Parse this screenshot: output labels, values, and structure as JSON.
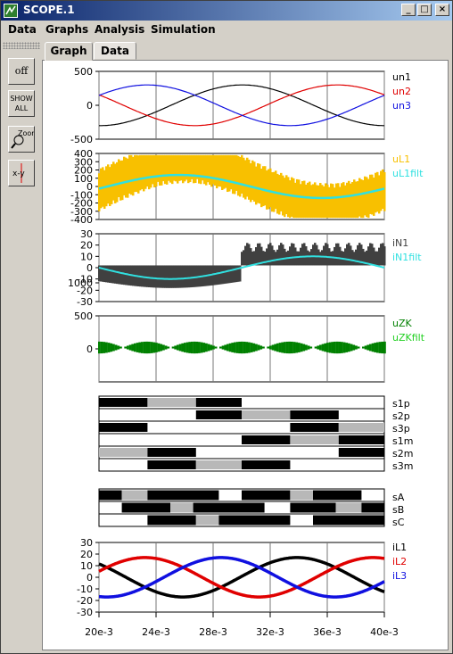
{
  "window": {
    "title": "SCOPE.1"
  },
  "menu": [
    "Data",
    "Graphs",
    "Analysis",
    "Simulation"
  ],
  "tabs": [
    {
      "label": "Graph",
      "active": true
    },
    {
      "label": "Data",
      "active": false
    }
  ],
  "tools": [
    {
      "name": "off-button",
      "label": "off"
    },
    {
      "name": "show-all-button",
      "label": "SHOW ALL"
    },
    {
      "name": "zoom-button",
      "label": "Zoom"
    },
    {
      "name": "xy-button",
      "label": "x-y"
    }
  ],
  "colors": {
    "black": "#000000",
    "red": "#e00000",
    "blue": "#1010e0",
    "orange": "#f8c000",
    "cyan": "#30e0e0",
    "dark": "#404040",
    "green": "#008000",
    "lightgreen": "#20d020",
    "gray": "#b8b8b8"
  },
  "x_axis": {
    "ticks": [
      "20e-3",
      "24e-3",
      "28e-3",
      "32e-3",
      "36e-3",
      "40e-3"
    ]
  },
  "graphs": [
    {
      "yticks": [
        "500",
        "0",
        "-500"
      ],
      "legend": [
        {
          "text": "un1",
          "color": "black"
        },
        {
          "text": "un2",
          "color": "red"
        },
        {
          "text": "un3",
          "color": "blue"
        }
      ]
    },
    {
      "yticks": [
        "400",
        "300",
        "200",
        "100",
        "0",
        "-100",
        "-200",
        "-300",
        "-400"
      ],
      "legend": [
        {
          "text": "uL1",
          "color": "orange"
        },
        {
          "text": "uL1filt",
          "color": "cyan"
        }
      ]
    },
    {
      "yticks": [
        "30",
        "20",
        "10",
        "0",
        "-10",
        "-20",
        "-30"
      ],
      "legend": [
        {
          "text": "iN1",
          "color": "dark"
        },
        {
          "text": "iN1filt",
          "color": "cyan"
        }
      ]
    },
    {
      "yticks": [
        "1000",
        "500",
        "0"
      ],
      "legend": [
        {
          "text": "uZK",
          "color": "green"
        },
        {
          "text": "uZKfilt",
          "color": "lightgreen"
        }
      ]
    },
    {
      "yticks": [],
      "legend": [
        {
          "text": "s1p",
          "color": "black"
        },
        {
          "text": "s2p",
          "color": "black"
        },
        {
          "text": "s3p",
          "color": "black"
        },
        {
          "text": "s1m",
          "color": "black"
        },
        {
          "text": "s2m",
          "color": "black"
        },
        {
          "text": "s3m",
          "color": "black"
        }
      ]
    },
    {
      "yticks": [],
      "legend": [
        {
          "text": "sA",
          "color": "black"
        },
        {
          "text": "sB",
          "color": "black"
        },
        {
          "text": "sC",
          "color": "black"
        }
      ]
    },
    {
      "yticks": [
        "30",
        "20",
        "10",
        "0",
        "-10",
        "-20",
        "-30"
      ],
      "legend": [
        {
          "text": "iL1",
          "color": "black"
        },
        {
          "text": "iL2",
          "color": "red"
        },
        {
          "text": "iL3",
          "color": "blue"
        }
      ]
    }
  ]
}
